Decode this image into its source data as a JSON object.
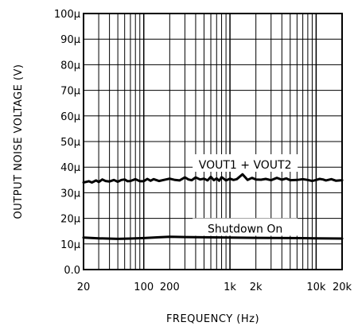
{
  "chart_data": {
    "type": "line",
    "xlabel": "FREQUENCY (Hz)",
    "ylabel": "OUTPUT NOISE VOLTAGE (V)",
    "xscale": "log",
    "xlim": [
      20,
      20000
    ],
    "ylim": [
      0,
      100
    ],
    "y_unit": "µV",
    "grid": true,
    "legend": "none",
    "x_tick_labels": [
      {
        "value": 20,
        "label": "20"
      },
      {
        "value": 100,
        "label": "100"
      },
      {
        "value": 200,
        "label": "200"
      },
      {
        "value": 1000,
        "label": "1k"
      },
      {
        "value": 2000,
        "label": "2k"
      },
      {
        "value": 10000,
        "label": "10k"
      },
      {
        "value": 20000,
        "label": "20k"
      }
    ],
    "y_tick_labels": [
      {
        "value": 0,
        "label": "0.0"
      },
      {
        "value": 10,
        "label": "10μ"
      },
      {
        "value": 20,
        "label": "20μ"
      },
      {
        "value": 30,
        "label": "30μ"
      },
      {
        "value": 40,
        "label": "40μ"
      },
      {
        "value": 50,
        "label": "50μ"
      },
      {
        "value": 60,
        "label": "60μ"
      },
      {
        "value": 70,
        "label": "70μ"
      },
      {
        "value": 80,
        "label": "80μ"
      },
      {
        "value": 90,
        "label": "90μ"
      },
      {
        "value": 100,
        "label": "100μ"
      }
    ],
    "annotations": [
      {
        "text": "VOUT1 + VOUT2",
        "x": 1500,
        "y": 41
      },
      {
        "text": "Shutdown On",
        "x": 1500,
        "y": 16
      }
    ],
    "series": [
      {
        "x": [
          20,
          23,
          25,
          28,
          30,
          33,
          36,
          40,
          45,
          50,
          55,
          60,
          65,
          70,
          80,
          90,
          100,
          110,
          120,
          130,
          150,
          170,
          200,
          230,
          260,
          300,
          330,
          360,
          400,
          450,
          500,
          550,
          600,
          650,
          700,
          750,
          800,
          900,
          1000,
          1100,
          1200,
          1400,
          1600,
          1800,
          2000,
          2300,
          2600,
          3000,
          3500,
          4000,
          4500,
          5000,
          6000,
          7000,
          8000,
          9000,
          10000,
          11000,
          12000,
          13000,
          15000,
          17000,
          20000
        ],
        "values": [
          34.0,
          34.5,
          34.0,
          34.8,
          34.2,
          35.2,
          34.6,
          34.4,
          35.0,
          34.3,
          35.0,
          35.2,
          34.5,
          34.6,
          35.3,
          34.5,
          34.5,
          35.4,
          34.7,
          35.3,
          34.6,
          35.0,
          35.5,
          35.0,
          34.8,
          36.0,
          35.2,
          34.9,
          36.0,
          35.2,
          35.5,
          34.8,
          36.2,
          34.9,
          35.6,
          34.7,
          36.1,
          34.8,
          35.5,
          35.0,
          35.3,
          37.2,
          35.0,
          35.8,
          35.2,
          35.1,
          35.4,
          34.9,
          35.8,
          35.1,
          35.6,
          34.9,
          35.0,
          35.3,
          35.0,
          34.6,
          35.0,
          35.4,
          35.2,
          34.8,
          35.3,
          34.7,
          34.9
        ]
      },
      {
        "x": [
          20,
          30,
          50,
          70,
          100,
          150,
          200,
          300,
          500,
          1000,
          2000,
          5000,
          10000,
          20000
        ],
        "values": [
          12.5,
          12.2,
          12.0,
          12.1,
          12.3,
          12.6,
          12.8,
          12.7,
          12.6,
          12.5,
          12.4,
          12.3,
          12.2,
          12.1
        ]
      }
    ]
  }
}
